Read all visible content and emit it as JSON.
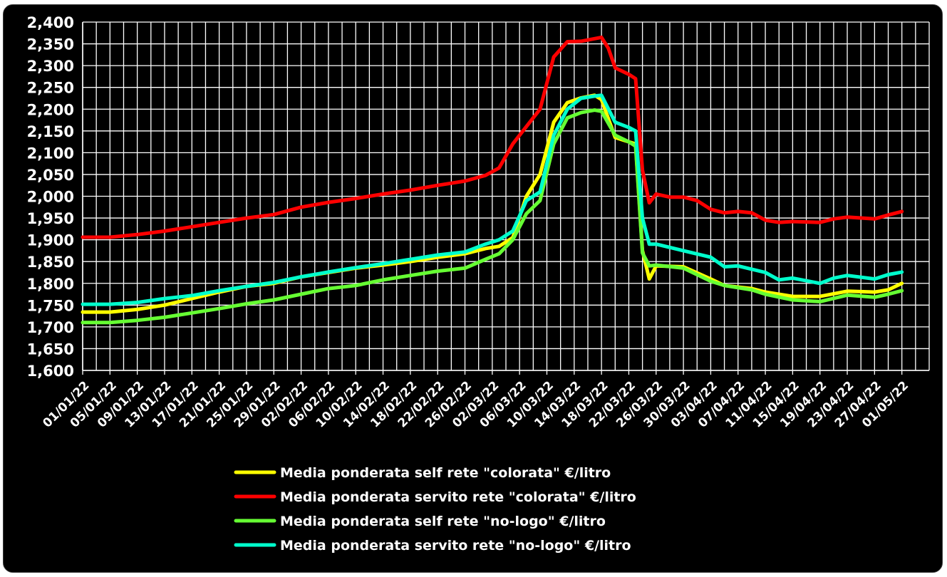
{
  "chart_data": {
    "type": "line",
    "title": "",
    "xlabel": "",
    "ylabel": "",
    "ylim": [
      1.6,
      2.4
    ],
    "ystep": 0.05,
    "xlim": [
      "2022-01-01",
      "2022-05-05"
    ],
    "x_tick_labels": [
      "01/01/22",
      "05/01/22",
      "09/01/22",
      "13/01/22",
      "17/01/22",
      "21/01/22",
      "25/01/22",
      "29/01/22",
      "02/02/22",
      "06/02/22",
      "10/02/22",
      "14/02/22",
      "18/02/22",
      "22/02/22",
      "26/02/22",
      "02/03/22",
      "06/03/22",
      "10/03/22",
      "14/03/22",
      "18/03/22",
      "22/03/22",
      "26/03/22",
      "30/03/22",
      "03/04/22",
      "07/04/22",
      "11/04/22",
      "15/04/22",
      "19/04/22",
      "23/04/22",
      "27/04/22",
      "01/05/22"
    ],
    "grid": true,
    "legend_position": "bottom",
    "background": "#000000",
    "text_color": "#ffffff",
    "series": [
      {
        "name": "Media ponderata self rete \"colorata\" €/litro",
        "color": "#ffff00",
        "points": [
          [
            "2022-01-01",
            1.734
          ],
          [
            "2022-01-05",
            1.734
          ],
          [
            "2022-01-09",
            1.74
          ],
          [
            "2022-01-13",
            1.75
          ],
          [
            "2022-01-17",
            1.765
          ],
          [
            "2022-01-21",
            1.78
          ],
          [
            "2022-01-25",
            1.793
          ],
          [
            "2022-01-29",
            1.8
          ],
          [
            "2022-02-02",
            1.815
          ],
          [
            "2022-02-06",
            1.825
          ],
          [
            "2022-02-10",
            1.835
          ],
          [
            "2022-02-14",
            1.842
          ],
          [
            "2022-02-18",
            1.85
          ],
          [
            "2022-02-22",
            1.86
          ],
          [
            "2022-02-26",
            1.868
          ],
          [
            "2022-03-01",
            1.88
          ],
          [
            "2022-03-03",
            1.885
          ],
          [
            "2022-03-05",
            1.905
          ],
          [
            "2022-03-07",
            2.0
          ],
          [
            "2022-03-09",
            2.05
          ],
          [
            "2022-03-11",
            2.17
          ],
          [
            "2022-03-13",
            2.215
          ],
          [
            "2022-03-15",
            2.226
          ],
          [
            "2022-03-17",
            2.232
          ],
          [
            "2022-03-18",
            2.222
          ],
          [
            "2022-03-20",
            2.135
          ],
          [
            "2022-03-22",
            2.125
          ],
          [
            "2022-03-23",
            2.12
          ],
          [
            "2022-03-24",
            1.875
          ],
          [
            "2022-03-25",
            1.81
          ],
          [
            "2022-03-26",
            1.84
          ],
          [
            "2022-03-30",
            1.838
          ],
          [
            "2022-04-03",
            1.81
          ],
          [
            "2022-04-05",
            1.795
          ],
          [
            "2022-04-09",
            1.788
          ],
          [
            "2022-04-11",
            1.78
          ],
          [
            "2022-04-15",
            1.77
          ],
          [
            "2022-04-19",
            1.77
          ],
          [
            "2022-04-23",
            1.782
          ],
          [
            "2022-04-27",
            1.78
          ],
          [
            "2022-04-29",
            1.785
          ],
          [
            "2022-05-01",
            1.8
          ]
        ]
      },
      {
        "name": "Media ponderata servito rete \"colorata\" €/litro",
        "color": "#ff0000",
        "points": [
          [
            "2022-01-01",
            1.906
          ],
          [
            "2022-01-05",
            1.906
          ],
          [
            "2022-01-09",
            1.912
          ],
          [
            "2022-01-13",
            1.92
          ],
          [
            "2022-01-17",
            1.93
          ],
          [
            "2022-01-21",
            1.94
          ],
          [
            "2022-01-25",
            1.95
          ],
          [
            "2022-01-29",
            1.958
          ],
          [
            "2022-02-02",
            1.975
          ],
          [
            "2022-02-06",
            1.986
          ],
          [
            "2022-02-10",
            1.995
          ],
          [
            "2022-02-14",
            2.005
          ],
          [
            "2022-02-18",
            2.014
          ],
          [
            "2022-02-22",
            2.025
          ],
          [
            "2022-02-26",
            2.035
          ],
          [
            "2022-03-01",
            2.048
          ],
          [
            "2022-03-03",
            2.065
          ],
          [
            "2022-03-05",
            2.12
          ],
          [
            "2022-03-07",
            2.16
          ],
          [
            "2022-03-09",
            2.2
          ],
          [
            "2022-03-11",
            2.32
          ],
          [
            "2022-03-13",
            2.355
          ],
          [
            "2022-03-15",
            2.356
          ],
          [
            "2022-03-18",
            2.365
          ],
          [
            "2022-03-19",
            2.34
          ],
          [
            "2022-03-20",
            2.295
          ],
          [
            "2022-03-22",
            2.28
          ],
          [
            "2022-03-23",
            2.27
          ],
          [
            "2022-03-24",
            2.06
          ],
          [
            "2022-03-25",
            1.985
          ],
          [
            "2022-03-26",
            2.005
          ],
          [
            "2022-03-28",
            1.998
          ],
          [
            "2022-03-30",
            1.998
          ],
          [
            "2022-04-01",
            1.99
          ],
          [
            "2022-04-03",
            1.97
          ],
          [
            "2022-04-05",
            1.962
          ],
          [
            "2022-04-07",
            1.965
          ],
          [
            "2022-04-09",
            1.962
          ],
          [
            "2022-04-11",
            1.945
          ],
          [
            "2022-04-13",
            1.94
          ],
          [
            "2022-04-15",
            1.942
          ],
          [
            "2022-04-19",
            1.94
          ],
          [
            "2022-04-21",
            1.948
          ],
          [
            "2022-04-23",
            1.952
          ],
          [
            "2022-04-27",
            1.948
          ],
          [
            "2022-04-29",
            1.957
          ],
          [
            "2022-05-01",
            1.965
          ]
        ]
      },
      {
        "name": "Media ponderata self rete \"no-logo\" €/litro",
        "color": "#66ff33",
        "points": [
          [
            "2022-01-01",
            1.71
          ],
          [
            "2022-01-05",
            1.71
          ],
          [
            "2022-01-09",
            1.715
          ],
          [
            "2022-01-13",
            1.722
          ],
          [
            "2022-01-17",
            1.732
          ],
          [
            "2022-01-21",
            1.742
          ],
          [
            "2022-01-25",
            1.753
          ],
          [
            "2022-01-29",
            1.762
          ],
          [
            "2022-02-02",
            1.775
          ],
          [
            "2022-02-06",
            1.788
          ],
          [
            "2022-02-10",
            1.795
          ],
          [
            "2022-02-14",
            1.808
          ],
          [
            "2022-02-18",
            1.818
          ],
          [
            "2022-02-22",
            1.828
          ],
          [
            "2022-02-26",
            1.835
          ],
          [
            "2022-03-01",
            1.855
          ],
          [
            "2022-03-03",
            1.868
          ],
          [
            "2022-03-05",
            1.9
          ],
          [
            "2022-03-07",
            1.96
          ],
          [
            "2022-03-09",
            1.99
          ],
          [
            "2022-03-11",
            2.12
          ],
          [
            "2022-03-13",
            2.18
          ],
          [
            "2022-03-15",
            2.192
          ],
          [
            "2022-03-17",
            2.198
          ],
          [
            "2022-03-18",
            2.195
          ],
          [
            "2022-03-20",
            2.14
          ],
          [
            "2022-03-22",
            2.125
          ],
          [
            "2022-03-23",
            2.115
          ],
          [
            "2022-03-24",
            1.87
          ],
          [
            "2022-03-25",
            1.84
          ],
          [
            "2022-03-26",
            1.842
          ],
          [
            "2022-03-30",
            1.835
          ],
          [
            "2022-04-03",
            1.805
          ],
          [
            "2022-04-05",
            1.795
          ],
          [
            "2022-04-09",
            1.785
          ],
          [
            "2022-04-11",
            1.775
          ],
          [
            "2022-04-15",
            1.762
          ],
          [
            "2022-04-19",
            1.758
          ],
          [
            "2022-04-23",
            1.773
          ],
          [
            "2022-04-27",
            1.768
          ],
          [
            "2022-04-29",
            1.775
          ],
          [
            "2022-05-01",
            1.783
          ]
        ]
      },
      {
        "name": "Media ponderata servito rete \"no-logo\" €/litro",
        "color": "#00ffcc",
        "points": [
          [
            "2022-01-01",
            1.752
          ],
          [
            "2022-01-05",
            1.752
          ],
          [
            "2022-01-09",
            1.756
          ],
          [
            "2022-01-13",
            1.765
          ],
          [
            "2022-01-17",
            1.772
          ],
          [
            "2022-01-21",
            1.783
          ],
          [
            "2022-01-25",
            1.793
          ],
          [
            "2022-01-29",
            1.802
          ],
          [
            "2022-02-02",
            1.815
          ],
          [
            "2022-02-06",
            1.826
          ],
          [
            "2022-02-10",
            1.836
          ],
          [
            "2022-02-14",
            1.845
          ],
          [
            "2022-02-18",
            1.855
          ],
          [
            "2022-02-22",
            1.865
          ],
          [
            "2022-02-26",
            1.872
          ],
          [
            "2022-03-01",
            1.89
          ],
          [
            "2022-03-03",
            1.9
          ],
          [
            "2022-03-05",
            1.92
          ],
          [
            "2022-03-07",
            1.99
          ],
          [
            "2022-03-09",
            2.01
          ],
          [
            "2022-03-11",
            2.14
          ],
          [
            "2022-03-13",
            2.2
          ],
          [
            "2022-03-15",
            2.225
          ],
          [
            "2022-03-17",
            2.23
          ],
          [
            "2022-03-18",
            2.232
          ],
          [
            "2022-03-20",
            2.17
          ],
          [
            "2022-03-22",
            2.158
          ],
          [
            "2022-03-23",
            2.15
          ],
          [
            "2022-03-24",
            1.95
          ],
          [
            "2022-03-25",
            1.89
          ],
          [
            "2022-03-26",
            1.89
          ],
          [
            "2022-03-30",
            1.875
          ],
          [
            "2022-04-03",
            1.86
          ],
          [
            "2022-04-05",
            1.838
          ],
          [
            "2022-04-07",
            1.84
          ],
          [
            "2022-04-11",
            1.825
          ],
          [
            "2022-04-13",
            1.808
          ],
          [
            "2022-04-15",
            1.812
          ],
          [
            "2022-04-19",
            1.8
          ],
          [
            "2022-04-21",
            1.812
          ],
          [
            "2022-04-23",
            1.818
          ],
          [
            "2022-04-27",
            1.81
          ],
          [
            "2022-04-29",
            1.82
          ],
          [
            "2022-05-01",
            1.826
          ]
        ]
      }
    ]
  }
}
